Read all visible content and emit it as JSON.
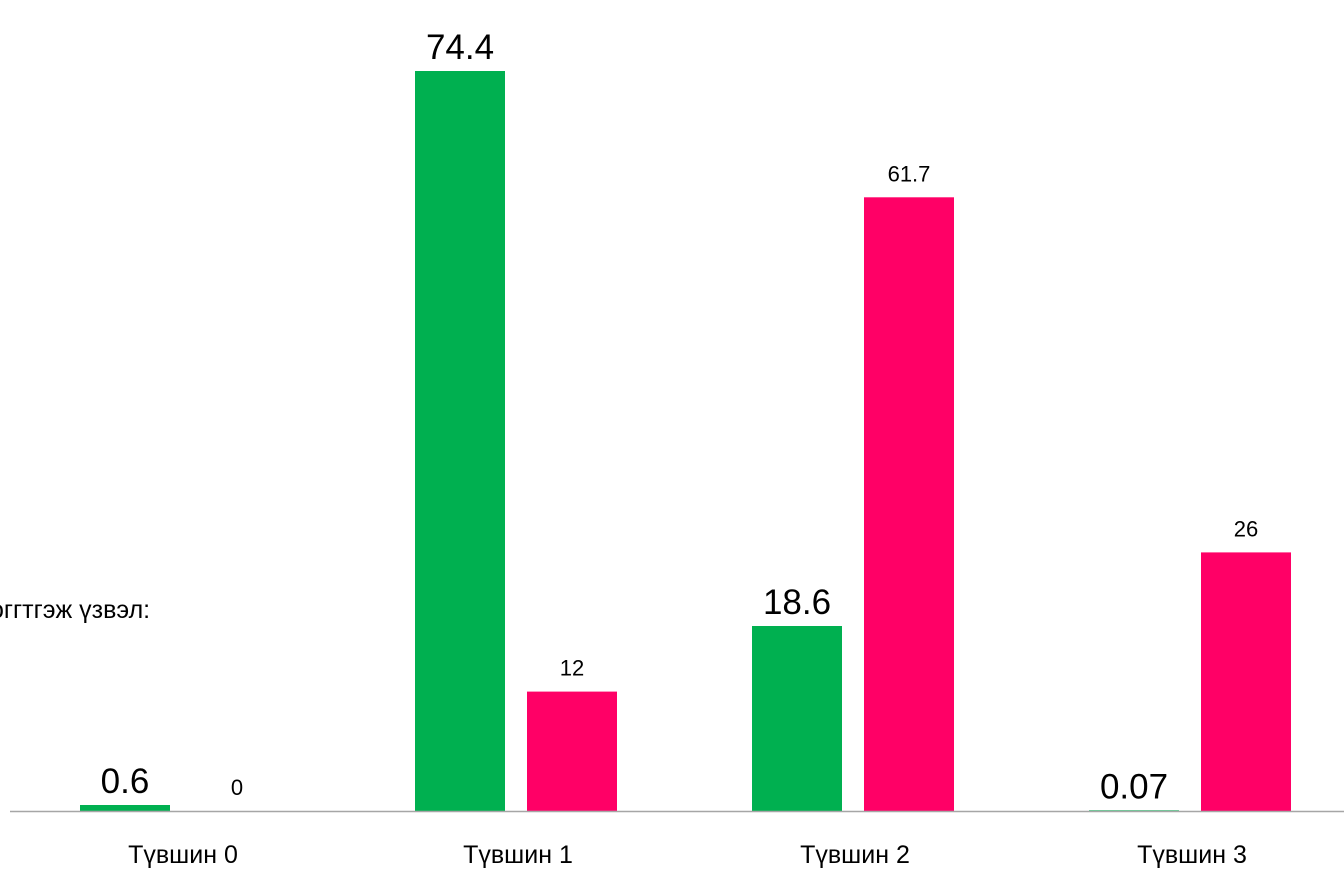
{
  "side_text": "оггтгэж үзвэл:",
  "chart_data": {
    "type": "bar",
    "categories": [
      "Түвшин 0",
      "Түвшин 1",
      "Түвшин 2",
      "Түвшин 3"
    ],
    "series": [
      {
        "values": [
          0.6,
          74.4,
          18.6,
          0.07
        ],
        "labels": [
          "0.6",
          "74.4",
          "18.6",
          "0.07"
        ],
        "color": "#00B050"
      },
      {
        "values": [
          0,
          12,
          61.7,
          26
        ],
        "labels": [
          "0",
          "12",
          "61.7",
          "26"
        ],
        "color": "#FF0066"
      }
    ],
    "title": "",
    "xlabel": "",
    "ylabel": "",
    "ylim": [
      0,
      80
    ],
    "grid": false,
    "legend": "none",
    "axis_color": "#A6A6A6"
  }
}
